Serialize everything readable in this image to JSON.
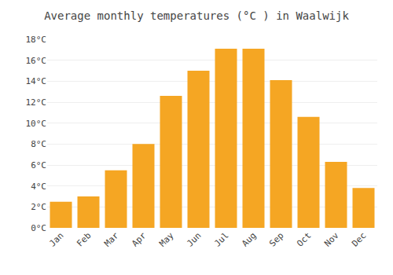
{
  "chart_data": {
    "type": "bar",
    "title": "Average monthly temperatures (°C ) in Waalwijk",
    "categories": [
      "Jan",
      "Feb",
      "Mar",
      "Apr",
      "May",
      "Jun",
      "Jul",
      "Aug",
      "Sep",
      "Oct",
      "Nov",
      "Dec"
    ],
    "values": [
      2.5,
      3.0,
      5.5,
      8.0,
      12.6,
      15.0,
      17.1,
      17.1,
      14.1,
      10.6,
      6.3,
      3.8
    ],
    "color": "#F5A623",
    "ylim": [
      0,
      18
    ],
    "yticks": [
      {
        "value": 0,
        "label": "0°C"
      },
      {
        "value": 2,
        "label": "2°C"
      },
      {
        "value": 4,
        "label": "4°C"
      },
      {
        "value": 6,
        "label": "6°C"
      },
      {
        "value": 8,
        "label": "8°C"
      },
      {
        "value": 10,
        "label": "10°C"
      },
      {
        "value": 12,
        "label": "12°C"
      },
      {
        "value": 14,
        "label": "14°C"
      },
      {
        "value": 16,
        "label": "16°C"
      },
      {
        "value": 18,
        "label": "18°C"
      }
    ],
    "grid": true
  }
}
